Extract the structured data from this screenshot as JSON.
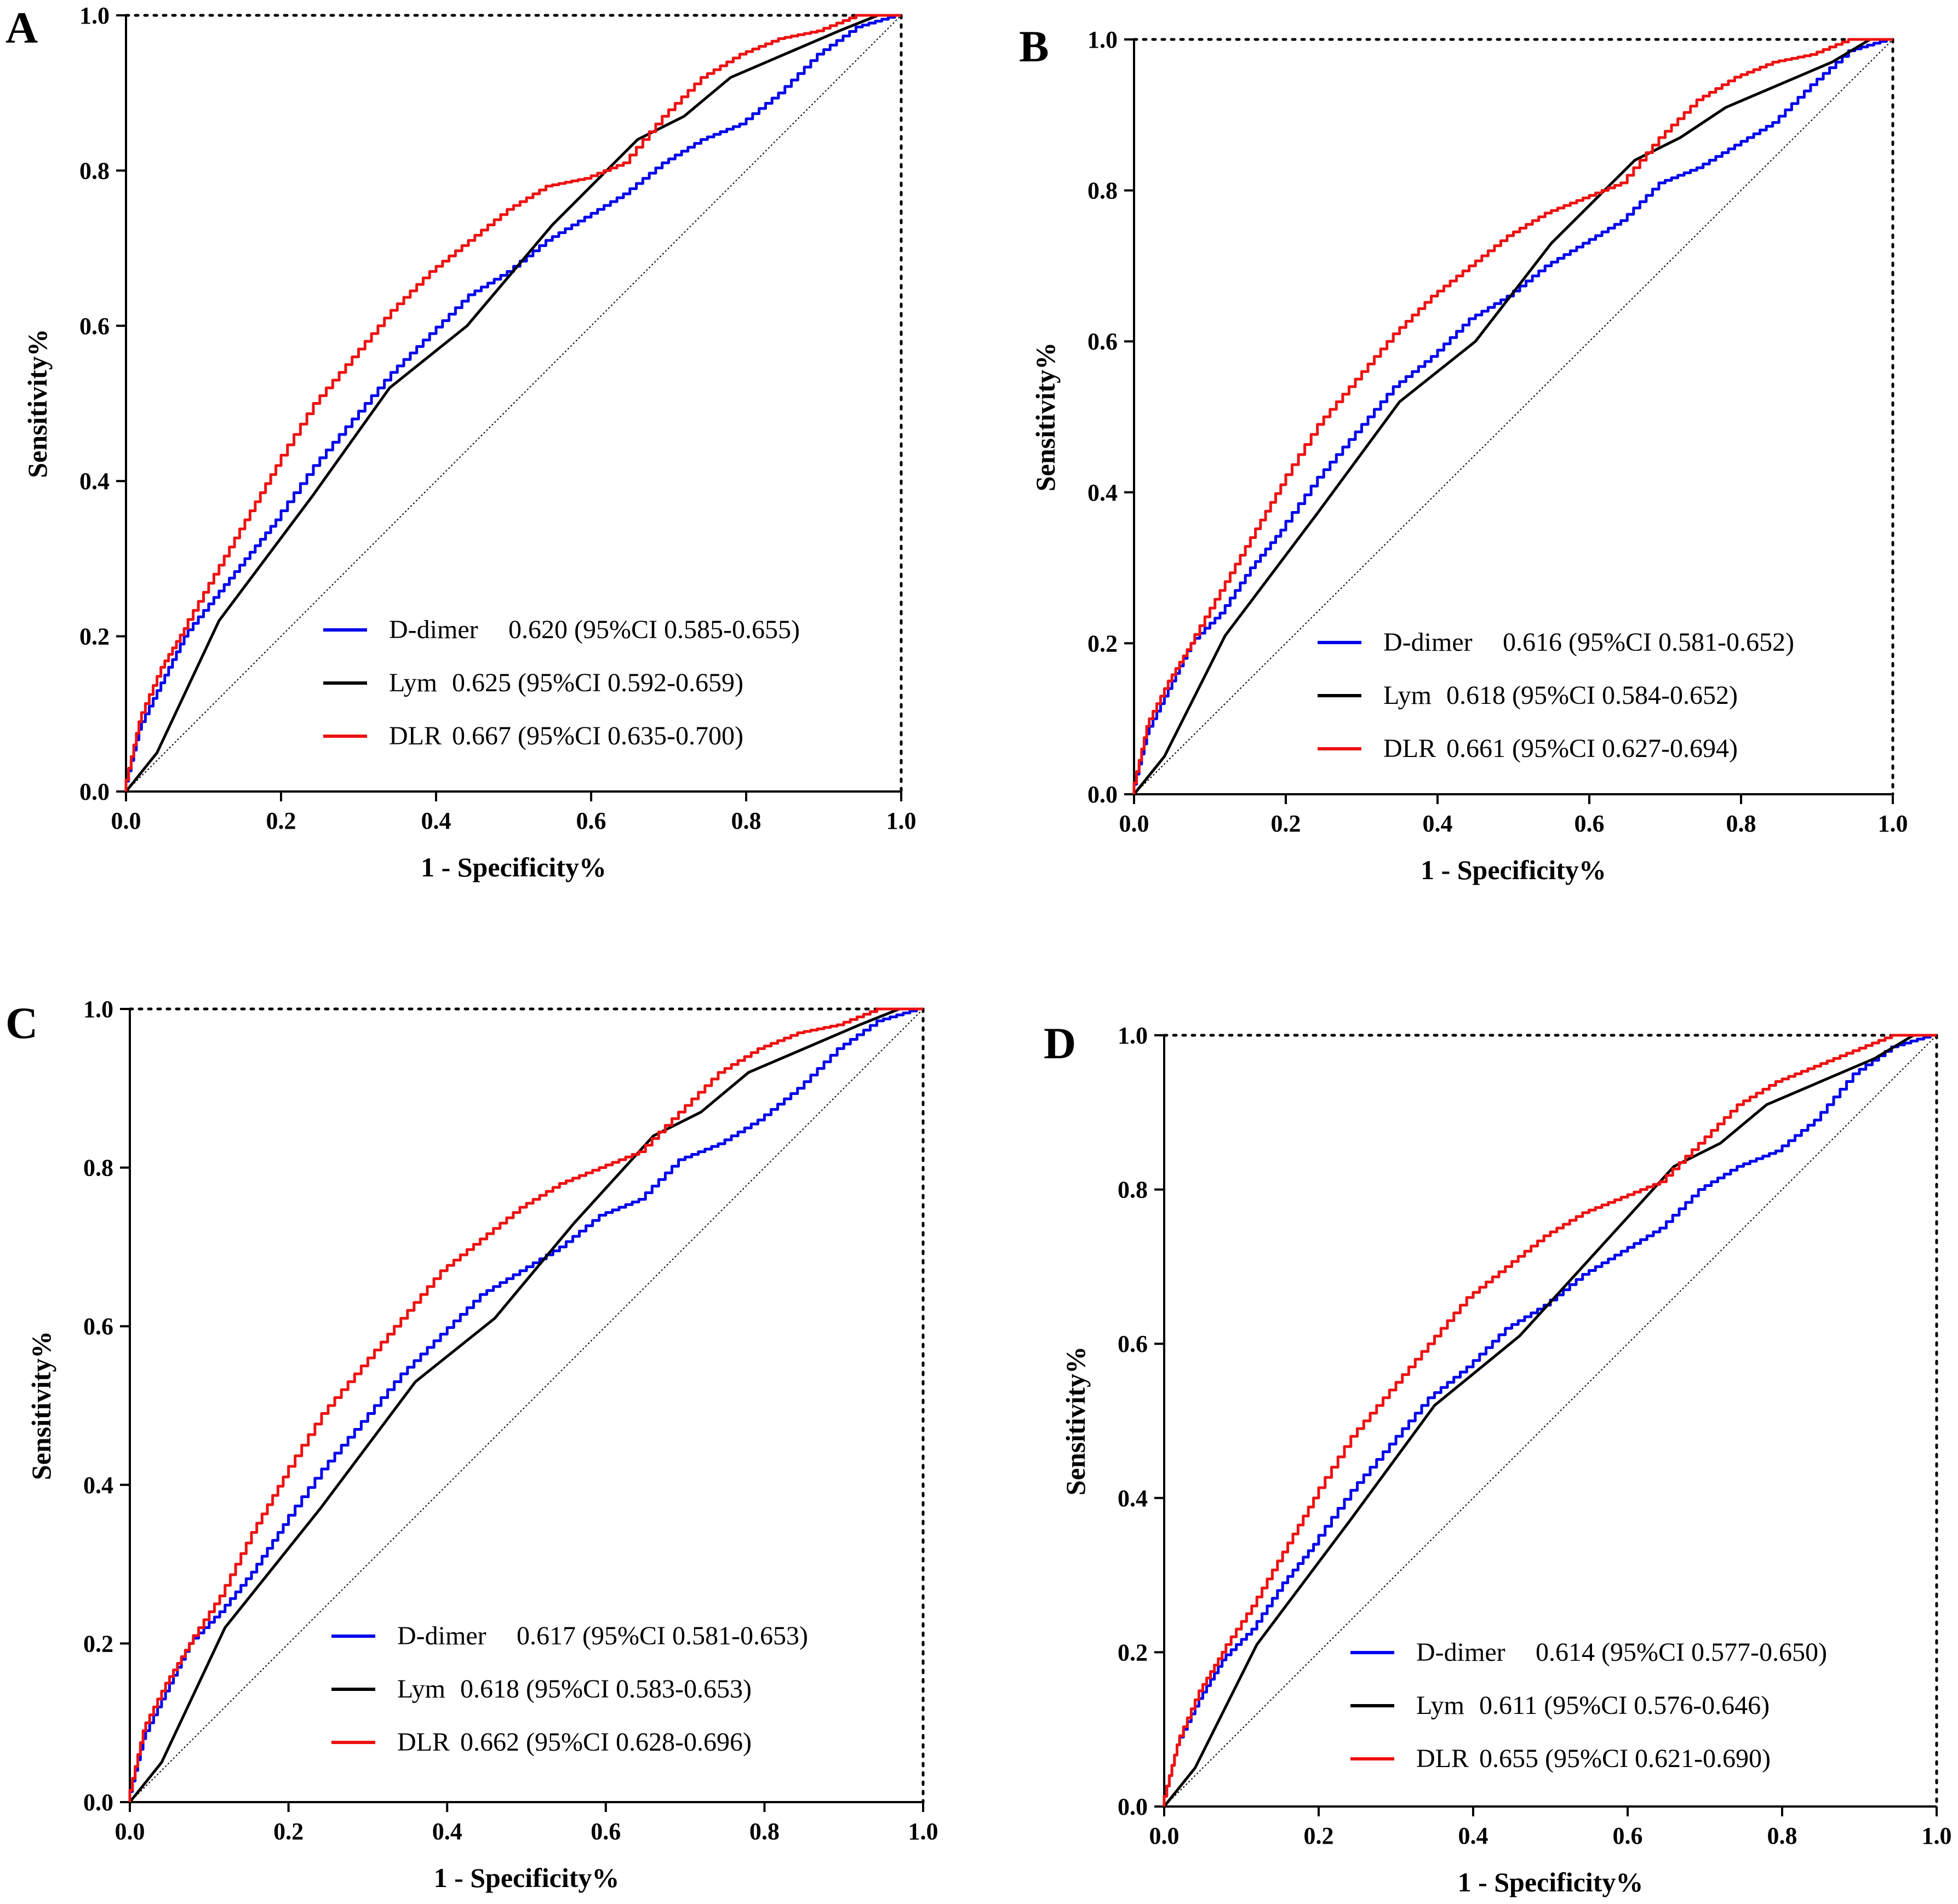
{
  "figure": {
    "colors": {
      "D-dimer": "#0000ee",
      "Lym": "#000000",
      "DLR": "#ee1111",
      "reference": "#000000"
    }
  },
  "chart_data": [
    {
      "panel": "A",
      "type": "line",
      "xlabel": "1 - Specificity%",
      "ylabel": "Sensitivity%",
      "xlim": [
        0,
        1
      ],
      "ylim": [
        0,
        1
      ],
      "xticks": [
        "0.0",
        "0.2",
        "0.4",
        "0.6",
        "0.8",
        "1.0"
      ],
      "yticks": [
        "0.0",
        "0.2",
        "0.4",
        "0.6",
        "0.8",
        "1.0"
      ],
      "legend_position": "bottom-right",
      "series": [
        {
          "name": "D-dimer",
          "label": "D-dimer",
          "auc_text": "0.620 (95%CI 0.585-0.655)",
          "color": "#0000ee",
          "x": [
            0,
            0.02,
            0.05,
            0.08,
            0.12,
            0.16,
            0.2,
            0.25,
            0.3,
            0.35,
            0.4,
            0.45,
            0.5,
            0.55,
            0.6,
            0.65,
            0.7,
            0.75,
            0.8,
            0.85,
            0.9,
            0.95,
            1.0
          ],
          "y": [
            0,
            0.08,
            0.14,
            0.2,
            0.25,
            0.3,
            0.35,
            0.42,
            0.48,
            0.54,
            0.59,
            0.64,
            0.67,
            0.71,
            0.74,
            0.77,
            0.81,
            0.84,
            0.86,
            0.9,
            0.95,
            0.985,
            1.0
          ]
        },
        {
          "name": "Lym",
          "label": "Lym",
          "auc_text": "0.625 (95%CI 0.592-0.659)",
          "color": "#000000",
          "x": [
            0,
            0.04,
            0.12,
            0.24,
            0.34,
            0.44,
            0.55,
            0.66,
            0.72,
            0.78,
            0.85,
            0.92,
            0.97,
            1.0
          ],
          "y": [
            0,
            0.05,
            0.22,
            0.38,
            0.52,
            0.6,
            0.73,
            0.84,
            0.87,
            0.92,
            0.95,
            0.98,
            1.0,
            1.0
          ]
        },
        {
          "name": "DLR",
          "label": "DLR",
          "auc_text": "0.667 (95%CI 0.635-0.700)",
          "color": "#ee1111",
          "x": [
            0,
            0.02,
            0.05,
            0.08,
            0.12,
            0.16,
            0.2,
            0.25,
            0.3,
            0.35,
            0.4,
            0.45,
            0.5,
            0.55,
            0.6,
            0.65,
            0.7,
            0.75,
            0.8,
            0.85,
            0.9,
            0.95,
            1.0
          ],
          "y": [
            0,
            0.09,
            0.16,
            0.21,
            0.28,
            0.35,
            0.42,
            0.5,
            0.56,
            0.62,
            0.67,
            0.71,
            0.75,
            0.78,
            0.79,
            0.81,
            0.87,
            0.92,
            0.95,
            0.97,
            0.98,
            1.0,
            1.0
          ]
        }
      ]
    },
    {
      "panel": "B",
      "type": "line",
      "xlabel": "1 - Specificity%",
      "ylabel": "Sensitivity%",
      "xlim": [
        0,
        1
      ],
      "ylim": [
        0,
        1
      ],
      "xticks": [
        "0.0",
        "0.2",
        "0.4",
        "0.6",
        "0.8",
        "1.0"
      ],
      "yticks": [
        "0.0",
        "0.2",
        "0.4",
        "0.6",
        "0.8",
        "1.0"
      ],
      "legend_position": "bottom-right",
      "series": [
        {
          "name": "D-dimer",
          "label": "D-dimer",
          "auc_text": "0.616 (95%CI 0.581-0.652)",
          "color": "#0000ee",
          "x": [
            0,
            0.02,
            0.05,
            0.08,
            0.12,
            0.16,
            0.2,
            0.25,
            0.3,
            0.35,
            0.4,
            0.45,
            0.5,
            0.55,
            0.6,
            0.65,
            0.7,
            0.75,
            0.8,
            0.85,
            0.9,
            0.95,
            1.0
          ],
          "y": [
            0,
            0.08,
            0.14,
            0.2,
            0.24,
            0.3,
            0.35,
            0.42,
            0.48,
            0.54,
            0.58,
            0.63,
            0.66,
            0.7,
            0.73,
            0.76,
            0.81,
            0.83,
            0.86,
            0.89,
            0.94,
            0.985,
            1.0
          ]
        },
        {
          "name": "Lym",
          "label": "Lym",
          "auc_text": "0.618 (95%CI 0.584-0.652)",
          "color": "#000000",
          "x": [
            0,
            0.04,
            0.12,
            0.24,
            0.35,
            0.45,
            0.55,
            0.66,
            0.72,
            0.78,
            0.85,
            0.92,
            0.97,
            1.0
          ],
          "y": [
            0,
            0.05,
            0.21,
            0.37,
            0.52,
            0.6,
            0.73,
            0.84,
            0.87,
            0.91,
            0.94,
            0.97,
            1.0,
            1.0
          ]
        },
        {
          "name": "DLR",
          "label": "DLR",
          "auc_text": "0.661 (95%CI 0.627-0.694)",
          "color": "#ee1111",
          "x": [
            0,
            0.02,
            0.05,
            0.08,
            0.12,
            0.16,
            0.2,
            0.25,
            0.3,
            0.35,
            0.4,
            0.45,
            0.5,
            0.55,
            0.6,
            0.65,
            0.7,
            0.75,
            0.8,
            0.85,
            0.9,
            0.95,
            1.0
          ],
          "y": [
            0,
            0.09,
            0.15,
            0.2,
            0.27,
            0.34,
            0.41,
            0.49,
            0.55,
            0.61,
            0.66,
            0.7,
            0.74,
            0.77,
            0.79,
            0.81,
            0.87,
            0.92,
            0.95,
            0.97,
            0.98,
            1.0,
            1.0
          ]
        }
      ]
    },
    {
      "panel": "C",
      "type": "line",
      "xlabel": "1 - Specificity%",
      "ylabel": "Sensitivity%",
      "xlim": [
        0,
        1
      ],
      "ylim": [
        0,
        1
      ],
      "xticks": [
        "0.0",
        "0.2",
        "0.4",
        "0.6",
        "0.8",
        "1.0"
      ],
      "yticks": [
        "0.0",
        "0.2",
        "0.4",
        "0.6",
        "0.8",
        "1.0"
      ],
      "legend_position": "bottom-right",
      "series": [
        {
          "name": "D-dimer",
          "label": "D-dimer",
          "auc_text": "0.617 (95%CI 0.581-0.653)",
          "color": "#0000ee",
          "x": [
            0,
            0.02,
            0.05,
            0.08,
            0.12,
            0.16,
            0.2,
            0.25,
            0.3,
            0.35,
            0.4,
            0.45,
            0.5,
            0.55,
            0.6,
            0.65,
            0.7,
            0.75,
            0.8,
            0.85,
            0.9,
            0.95,
            1.0
          ],
          "y": [
            0,
            0.08,
            0.14,
            0.2,
            0.24,
            0.29,
            0.35,
            0.42,
            0.48,
            0.54,
            0.59,
            0.64,
            0.67,
            0.7,
            0.74,
            0.76,
            0.81,
            0.83,
            0.86,
            0.9,
            0.95,
            0.985,
            1.0
          ]
        },
        {
          "name": "Lym",
          "label": "Lym",
          "auc_text": "0.618 (95%CI 0.583-0.653)",
          "color": "#000000",
          "x": [
            0,
            0.04,
            0.12,
            0.24,
            0.36,
            0.46,
            0.56,
            0.66,
            0.72,
            0.78,
            0.85,
            0.92,
            0.97,
            1.0
          ],
          "y": [
            0,
            0.05,
            0.22,
            0.37,
            0.53,
            0.61,
            0.73,
            0.84,
            0.87,
            0.92,
            0.95,
            0.98,
            1.0,
            1.0
          ]
        },
        {
          "name": "DLR",
          "label": "DLR",
          "auc_text": "0.662 (95%CI 0.628-0.696)",
          "color": "#ee1111",
          "x": [
            0,
            0.02,
            0.05,
            0.08,
            0.12,
            0.16,
            0.2,
            0.25,
            0.3,
            0.35,
            0.4,
            0.45,
            0.5,
            0.55,
            0.6,
            0.65,
            0.7,
            0.75,
            0.8,
            0.85,
            0.9,
            0.95,
            1.0
          ],
          "y": [
            0,
            0.09,
            0.15,
            0.2,
            0.26,
            0.34,
            0.41,
            0.49,
            0.55,
            0.61,
            0.67,
            0.71,
            0.75,
            0.78,
            0.8,
            0.82,
            0.87,
            0.92,
            0.95,
            0.97,
            0.98,
            1.0,
            1.0
          ]
        }
      ]
    },
    {
      "panel": "D",
      "type": "line",
      "xlabel": "1 - Specificity%",
      "ylabel": "Sensitivity%",
      "xlim": [
        0,
        1
      ],
      "ylim": [
        0,
        1
      ],
      "xticks": [
        "0.0",
        "0.2",
        "0.4",
        "0.6",
        "0.8",
        "1.0"
      ],
      "yticks": [
        "0.0",
        "0.2",
        "0.4",
        "0.6",
        "0.8",
        "1.0"
      ],
      "legend_position": "bottom-right",
      "series": [
        {
          "name": "D-dimer",
          "label": "D-dimer",
          "auc_text": "0.614 (95%CI 0.577-0.650)",
          "color": "#0000ee",
          "x": [
            0,
            0.02,
            0.05,
            0.08,
            0.12,
            0.16,
            0.2,
            0.25,
            0.3,
            0.35,
            0.4,
            0.45,
            0.5,
            0.55,
            0.6,
            0.65,
            0.7,
            0.75,
            0.8,
            0.85,
            0.9,
            0.95,
            1.0
          ],
          "y": [
            0,
            0.08,
            0.14,
            0.19,
            0.23,
            0.29,
            0.34,
            0.41,
            0.47,
            0.53,
            0.57,
            0.62,
            0.65,
            0.69,
            0.72,
            0.75,
            0.8,
            0.83,
            0.85,
            0.89,
            0.95,
            0.985,
            1.0
          ]
        },
        {
          "name": "Lym",
          "label": "Lym",
          "auc_text": "0.611 (95%CI 0.576-0.646)",
          "color": "#000000",
          "x": [
            0,
            0.04,
            0.12,
            0.24,
            0.35,
            0.46,
            0.56,
            0.66,
            0.72,
            0.78,
            0.85,
            0.92,
            0.97,
            1.0
          ],
          "y": [
            0,
            0.05,
            0.21,
            0.37,
            0.52,
            0.61,
            0.72,
            0.83,
            0.86,
            0.91,
            0.94,
            0.97,
            1.0,
            1.0
          ]
        },
        {
          "name": "DLR",
          "label": "DLR",
          "auc_text": "0.655 (95%CI 0.621-0.690)",
          "color": "#ee1111",
          "x": [
            0,
            0.02,
            0.05,
            0.08,
            0.12,
            0.16,
            0.2,
            0.25,
            0.3,
            0.35,
            0.4,
            0.45,
            0.5,
            0.55,
            0.6,
            0.65,
            0.7,
            0.75,
            0.8,
            0.85,
            0.9,
            0.95,
            1.0
          ],
          "y": [
            0,
            0.08,
            0.15,
            0.2,
            0.26,
            0.33,
            0.4,
            0.48,
            0.54,
            0.6,
            0.66,
            0.7,
            0.74,
            0.77,
            0.79,
            0.81,
            0.86,
            0.91,
            0.94,
            0.96,
            0.98,
            1.0,
            1.0
          ]
        }
      ]
    }
  ]
}
